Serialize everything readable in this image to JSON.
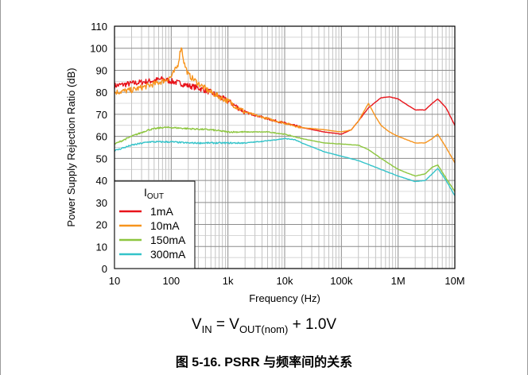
{
  "chart_data": {
    "type": "line",
    "title": "",
    "xlabel": "Frequency (Hz)",
    "ylabel": "Power Supply Rejection Ratio (dB)",
    "xscale": "log",
    "xlim": [
      10,
      10000000
    ],
    "ylim": [
      0,
      110
    ],
    "x_ticks": [
      10,
      100,
      1000,
      10000,
      100000,
      1000000,
      10000000
    ],
    "x_tick_labels": [
      "10",
      "100",
      "1k",
      "10k",
      "100k",
      "1M",
      "10M"
    ],
    "y_ticks": [
      0,
      10,
      20,
      30,
      40,
      50,
      60,
      70,
      80,
      90,
      100,
      110
    ],
    "y_tick_labels": [
      "0",
      "10",
      "20",
      "30",
      "40",
      "50",
      "60",
      "70",
      "80",
      "90",
      "100",
      "110"
    ],
    "grid": true,
    "legend": {
      "title_main": "I",
      "title_sub": "OUT",
      "placement": "bottom-left"
    },
    "series": [
      {
        "name": "1mA",
        "color": "#e8141b",
        "x": [
          10,
          20,
          40,
          70,
          100,
          150,
          200,
          300,
          500,
          700,
          1000,
          2000,
          5000,
          10000,
          20000,
          50000,
          100000,
          150000,
          200000,
          300000,
          500000,
          700000,
          1000000,
          1500000,
          2000000,
          3000000,
          4000000,
          5000000,
          7000000,
          10000000
        ],
        "y": [
          83,
          84,
          85,
          86,
          85,
          84,
          83,
          82,
          80,
          78,
          76,
          71,
          68,
          66,
          64,
          62,
          61,
          63,
          67,
          73,
          77.5,
          78,
          77,
          74,
          72,
          72,
          75,
          77,
          73,
          65
        ]
      },
      {
        "name": "10mA",
        "color": "#f7941d",
        "x": [
          10,
          20,
          40,
          70,
          100,
          130,
          150,
          170,
          200,
          300,
          500,
          700,
          1000,
          2000,
          5000,
          10000,
          20000,
          50000,
          100000,
          150000,
          200000,
          300000,
          400000,
          500000,
          700000,
          1000000,
          2000000,
          3000000,
          4000000,
          5000000,
          7000000,
          10000000
        ],
        "y": [
          80,
          81,
          83,
          85,
          87,
          92,
          101,
          93,
          88,
          84,
          80,
          78,
          76,
          71,
          68,
          66,
          64,
          63,
          62,
          63,
          67,
          75,
          69,
          65,
          62,
          60,
          57,
          57,
          59,
          61,
          55,
          48
        ]
      },
      {
        "name": "150mA",
        "color": "#8dc63f",
        "x": [
          10,
          20,
          40,
          70,
          100,
          200,
          500,
          1000,
          2000,
          5000,
          10000,
          20000,
          50000,
          100000,
          200000,
          300000,
          500000,
          1000000,
          2000000,
          3000000,
          4000000,
          5000000,
          7000000,
          10000000
        ],
        "y": [
          56.5,
          60,
          63,
          64,
          64,
          63.5,
          63,
          62,
          62,
          62,
          61,
          59,
          57,
          56.5,
          56,
          54,
          50,
          45,
          42,
          43,
          46,
          47,
          41,
          35
        ]
      },
      {
        "name": "300mA",
        "color": "#33c3c9",
        "x": [
          10,
          20,
          40,
          70,
          100,
          200,
          500,
          1000,
          2000,
          5000,
          10000,
          15000,
          20000,
          50000,
          100000,
          200000,
          500000,
          1000000,
          2000000,
          3000000,
          4000000,
          5000000,
          7000000,
          10000000
        ],
        "y": [
          53.5,
          56,
          57.5,
          57.5,
          57.5,
          57,
          57,
          57,
          57,
          58,
          59,
          58.5,
          57,
          53,
          51,
          49,
          45,
          42,
          39.5,
          40,
          43,
          45.5,
          40,
          33
        ]
      }
    ]
  },
  "condition": {
    "v_in_main": "V",
    "v_in_sub": "IN",
    "equals": " = ",
    "v_out_main": "V",
    "v_out_sub": "OUT(nom)",
    "tail": " + 1.0V"
  },
  "caption": "图 5-16. PSRR 与频率间的关系"
}
